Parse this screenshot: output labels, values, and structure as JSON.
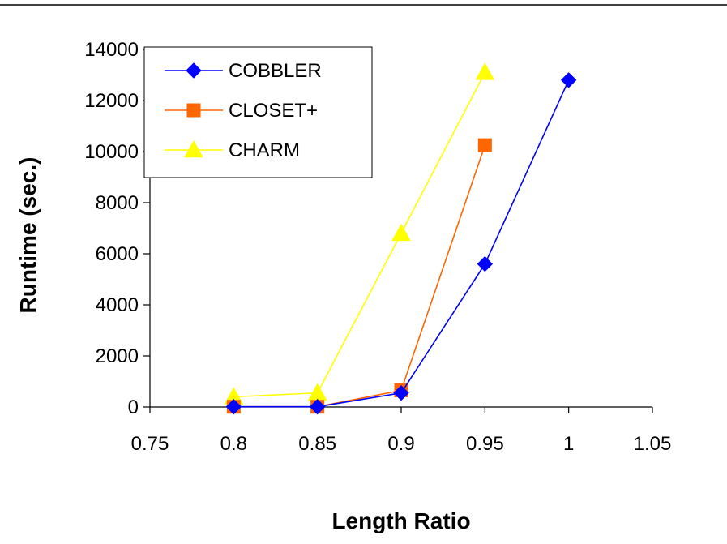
{
  "chart_data": {
    "type": "line",
    "title": "",
    "xlabel": "Length Ratio",
    "ylabel": "Runtime (sec.)",
    "xlim": [
      0.75,
      1.05
    ],
    "ylim": [
      0,
      14000
    ],
    "xticks": [
      "0.75",
      "0.8",
      "0.85",
      "0.9",
      "0.95",
      "1",
      "1.05"
    ],
    "yticks": [
      "0",
      "2000",
      "4000",
      "6000",
      "8000",
      "10000",
      "12000",
      "14000"
    ],
    "grid": false,
    "legend_position": "top-left",
    "series": [
      {
        "name": "COBBLER",
        "color": "#0000ff",
        "marker": "diamond",
        "x": [
          0.8,
          0.85,
          0.9,
          0.95,
          1.0
        ],
        "y": [
          10,
          10,
          550,
          5600,
          12800
        ]
      },
      {
        "name": "CLOSET+",
        "color": "#ff6600",
        "marker": "square",
        "x": [
          0.8,
          0.85,
          0.9,
          0.95
        ],
        "y": [
          10,
          10,
          650,
          10250
        ]
      },
      {
        "name": "CHARM",
        "color": "#ffff00",
        "marker": "triangle",
        "x": [
          0.8,
          0.85,
          0.9,
          0.95
        ],
        "y": [
          400,
          550,
          6800,
          13100
        ]
      }
    ]
  }
}
